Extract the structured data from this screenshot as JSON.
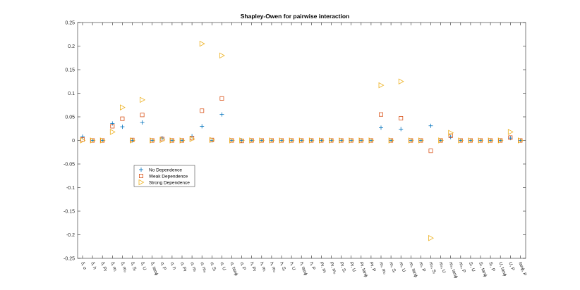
{
  "chart_data": {
    "type": "scatter",
    "title": "Shapley-Owen for pairwise interaction",
    "xlabel": "",
    "ylabel": "",
    "ylim": [
      -0.25,
      0.25
    ],
    "yticks": [
      -0.25,
      -0.2,
      -0.15,
      -0.1,
      -0.05,
      0,
      0.05,
      0.1,
      0.15,
      0.2,
      0.25
    ],
    "ytick_labels": [
      "-0.25",
      "-0.2",
      "-0.15",
      "-0.1",
      "-0.05",
      "0",
      "0.05",
      "0.1",
      "0.15",
      "0.2",
      "0.25"
    ],
    "grid": false,
    "legend_position": "left-middle",
    "categories": [
      "δ, σ",
      "δ, h",
      "δ, Pr",
      "δ, mᵢ",
      "δ, mₒ",
      "δ, Sᵣ",
      "δ, U",
      "δ, tanϕ",
      "σ, P",
      "σ, h",
      "σ, Pr",
      "σ, mᵢ",
      "σ, mₒ",
      "σ, Sᵣ",
      "σ, U",
      "σ, tanϕ",
      "σ, P",
      "h, Pr",
      "h, mᵢ",
      "h, mₒ",
      "h, Sᵣ",
      "h, U",
      "h, tanϕ",
      "h, P",
      "Pr, mᵢ",
      "Pr, mₒ",
      "Pr, Sᵣ",
      "Pr, U",
      "Pr, tanϕ",
      "Pr, P",
      "mᵢ, mₒ",
      "mᵢ, Sᵣ",
      "mᵢ, U",
      "mᵢ, tanϕ",
      "mᵢ, P",
      "mₒ, Sᵣ",
      "mₒ, U",
      "mₒ, tanϕ",
      "mₒ, P",
      "Sᵣ, U",
      "Sᵣ, tanϕ",
      "Sᵣ, P",
      "U, tanϕ",
      "U, P",
      "tanϕ, P"
    ],
    "series": [
      {
        "name": "No Dependence",
        "marker": "plus",
        "color": "#0072BD",
        "values": [
          0.008,
          0,
          0,
          0.036,
          0.029,
          0,
          0.038,
          0,
          0.005,
          0,
          0,
          0.009,
          0.03,
          0,
          0.055,
          0,
          0,
          0,
          0,
          0,
          0,
          0,
          0,
          0,
          0,
          0,
          0,
          0,
          0,
          0,
          0.027,
          0,
          0.024,
          0,
          0,
          0.031,
          0,
          0.007,
          0,
          0,
          0,
          0,
          0,
          0.005,
          0
        ]
      },
      {
        "name": "Weak Dependence",
        "marker": "square",
        "color": "#D95319",
        "values": [
          0.002,
          0,
          0,
          0.03,
          0.046,
          0.001,
          0.054,
          0,
          0.003,
          0,
          0,
          0.005,
          0.063,
          0.001,
          0.089,
          0,
          -0.001,
          0,
          0,
          0,
          0,
          0,
          0,
          0,
          0,
          0,
          0,
          0,
          0,
          0,
          0.055,
          0,
          0.047,
          0,
          0,
          -0.022,
          0,
          0.01,
          0,
          0,
          0,
          0,
          0,
          0.006,
          0
        ]
      },
      {
        "name": "Strong Dependence",
        "marker": "triangle-right",
        "color": "#EDB120",
        "values": [
          0,
          0,
          0,
          0.018,
          0.07,
          0,
          0.086,
          0,
          0.001,
          0,
          0,
          0.003,
          0.205,
          0.001,
          0.18,
          0,
          0,
          0,
          0,
          0,
          0,
          0,
          0,
          0,
          0,
          0,
          0,
          0,
          0,
          0,
          0.117,
          0,
          0.125,
          0,
          0,
          -0.207,
          0,
          0.016,
          0,
          0,
          0,
          0,
          0,
          0.018,
          0
        ]
      }
    ]
  }
}
